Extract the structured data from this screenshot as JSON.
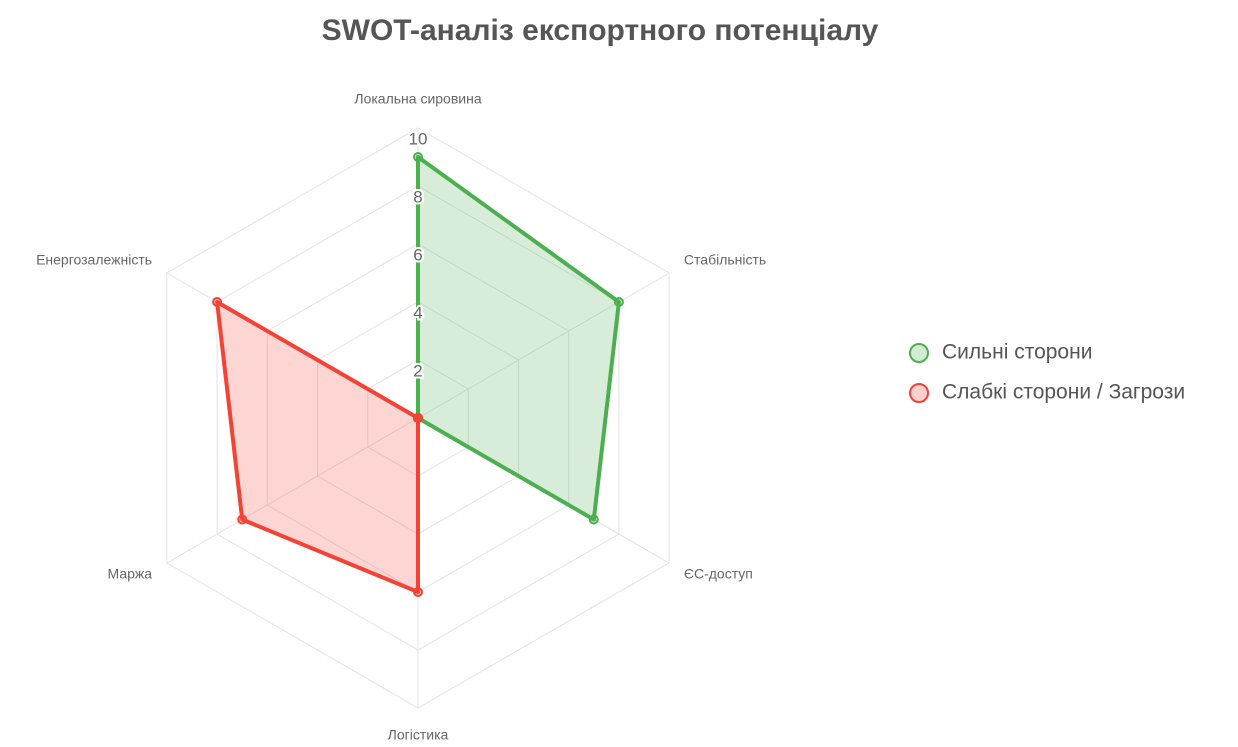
{
  "chart_data": {
    "type": "radar",
    "title": "SWOT-аналіз експортного потенціалу",
    "categories": [
      "Локальна сировина",
      "Стабільність",
      "ЄС-доступ",
      "Логістика",
      "Маржа",
      "Енергозалежність"
    ],
    "series": [
      {
        "name": "Сильні сторони",
        "color": "#4caf50",
        "values": [
          9,
          8,
          7,
          0,
          0,
          0
        ]
      },
      {
        "name": "Слабкі сторони / Загрози",
        "color": "#f44336",
        "values": [
          0,
          0,
          0,
          6,
          7,
          8
        ]
      }
    ],
    "ylim": [
      0,
      10
    ],
    "yticks": [
      2,
      4,
      6,
      8,
      10
    ],
    "grid": true,
    "legend": "right"
  }
}
